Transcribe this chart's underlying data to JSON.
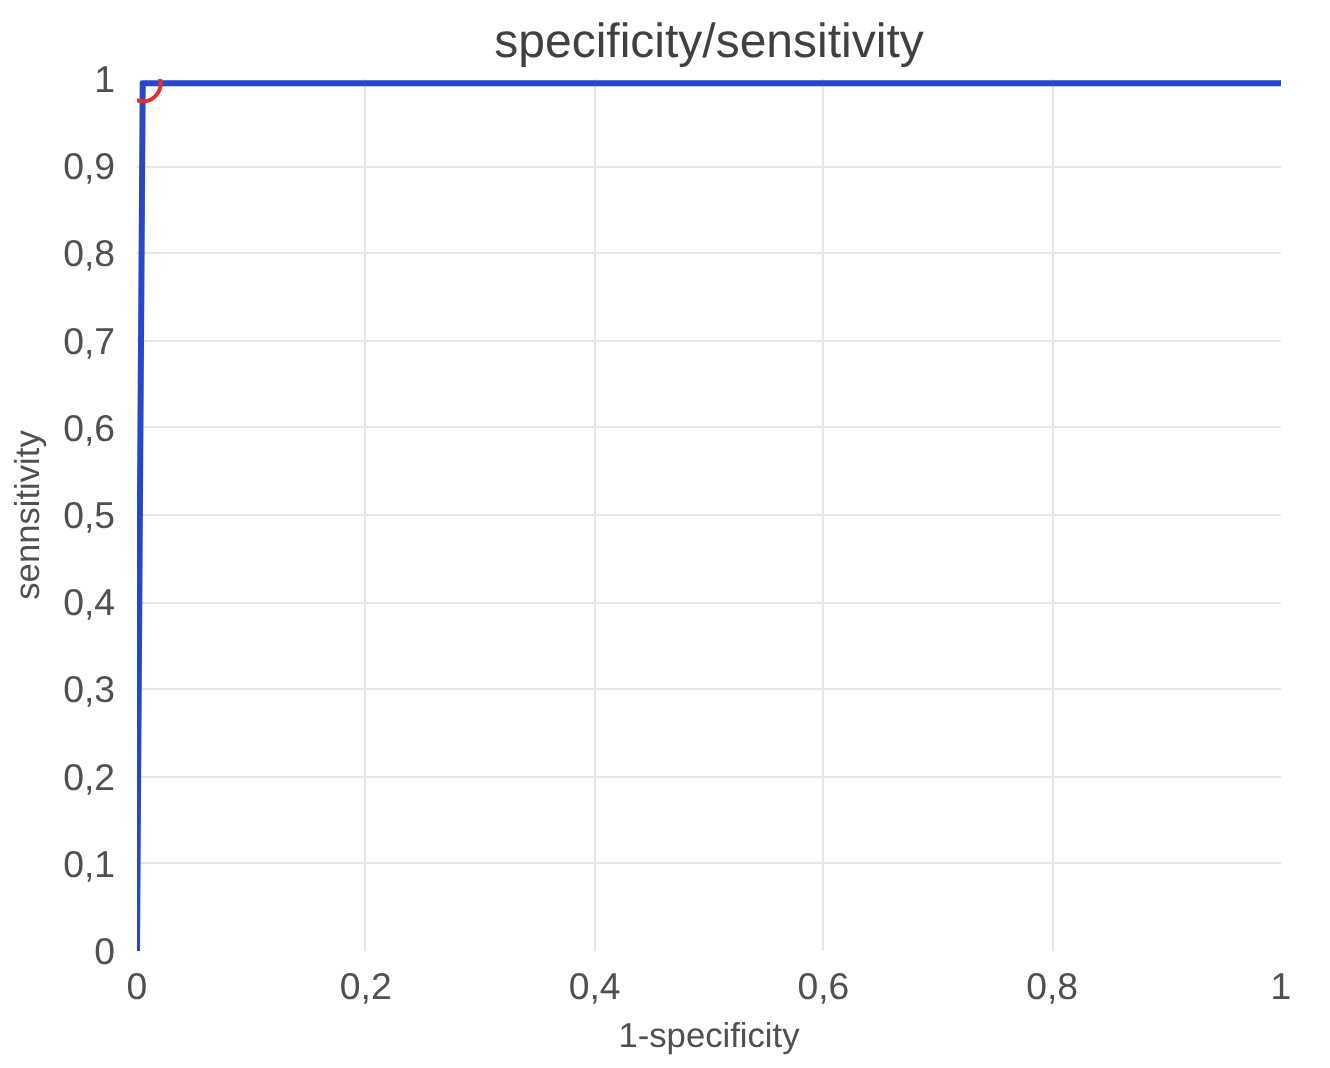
{
  "chart_data": {
    "type": "line",
    "title": "specificity/sensitivity",
    "xlabel": "1-specificity",
    "ylabel": "sennsitivity",
    "x": [
      0,
      0.005,
      1
    ],
    "series": [
      {
        "color": "#2846c8",
        "values": [
          0,
          0.995,
          0.995
        ]
      },
      {
        "type": "scatter",
        "marker": "circle",
        "color": "#e03030",
        "x": [
          0.005
        ],
        "values": [
          0.995
        ]
      }
    ],
    "xlim": [
      0,
      1
    ],
    "ylim": [
      0,
      1
    ],
    "xticks": [
      {
        "value": 0,
        "label": "0"
      },
      {
        "value": 0.2,
        "label": "0,2"
      },
      {
        "value": 0.4,
        "label": "0,4"
      },
      {
        "value": 0.6,
        "label": "0,6"
      },
      {
        "value": 0.8,
        "label": "0,8"
      },
      {
        "value": 1,
        "label": "1"
      }
    ],
    "yticks": [
      {
        "value": 0,
        "label": "0"
      },
      {
        "value": 0.1,
        "label": "0,1"
      },
      {
        "value": 0.2,
        "label": "0,2"
      },
      {
        "value": 0.3,
        "label": "0,3"
      },
      {
        "value": 0.4,
        "label": "0,4"
      },
      {
        "value": 0.5,
        "label": "0,5"
      },
      {
        "value": 0.6,
        "label": "0,6"
      },
      {
        "value": 0.7,
        "label": "0,7"
      },
      {
        "value": 0.8,
        "label": "0,8"
      },
      {
        "value": 0.9,
        "label": "0,9"
      },
      {
        "value": 1,
        "label": "1"
      }
    ],
    "grid": true,
    "marker": "none"
  }
}
